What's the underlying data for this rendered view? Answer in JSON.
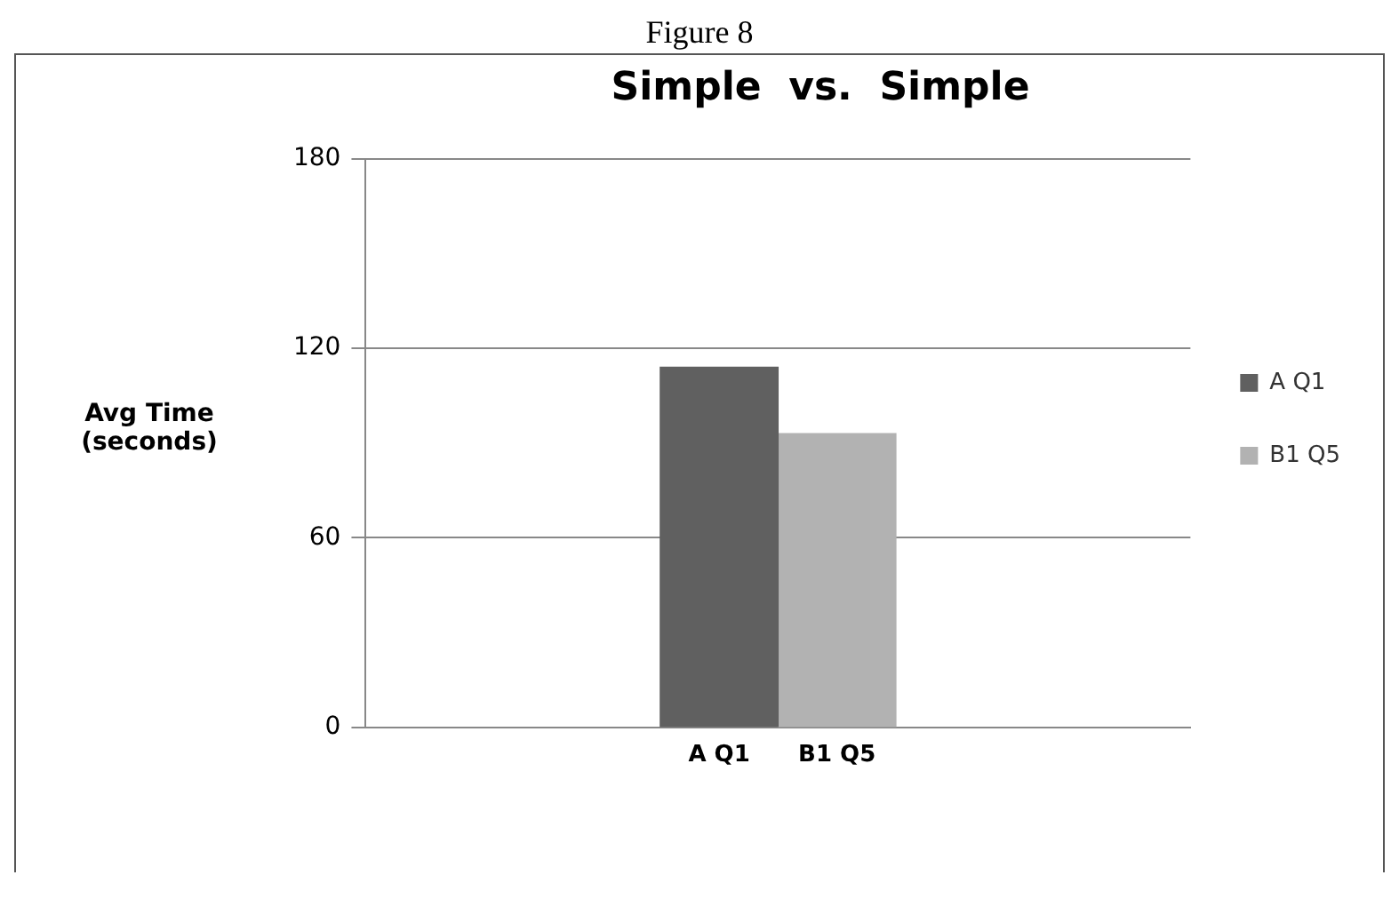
{
  "chart_data": {
    "type": "bar",
    "title": "Simple  vs.  Simple",
    "ylabel": "Avg Time (seconds)",
    "annotations": [
      "Figure 8"
    ],
    "categories": [
      "A Q1",
      "B1 Q5"
    ],
    "series": [
      {
        "name": "A Q1",
        "color": "#606060",
        "values": [
          114,
          null
        ]
      },
      {
        "name": "B1 Q5",
        "color": "#b2b2b2",
        "values": [
          null,
          93
        ]
      }
    ],
    "ylim": [
      0,
      180
    ],
    "yticks": [
      0,
      60,
      120,
      180
    ],
    "grid": "y",
    "legend": "right"
  }
}
